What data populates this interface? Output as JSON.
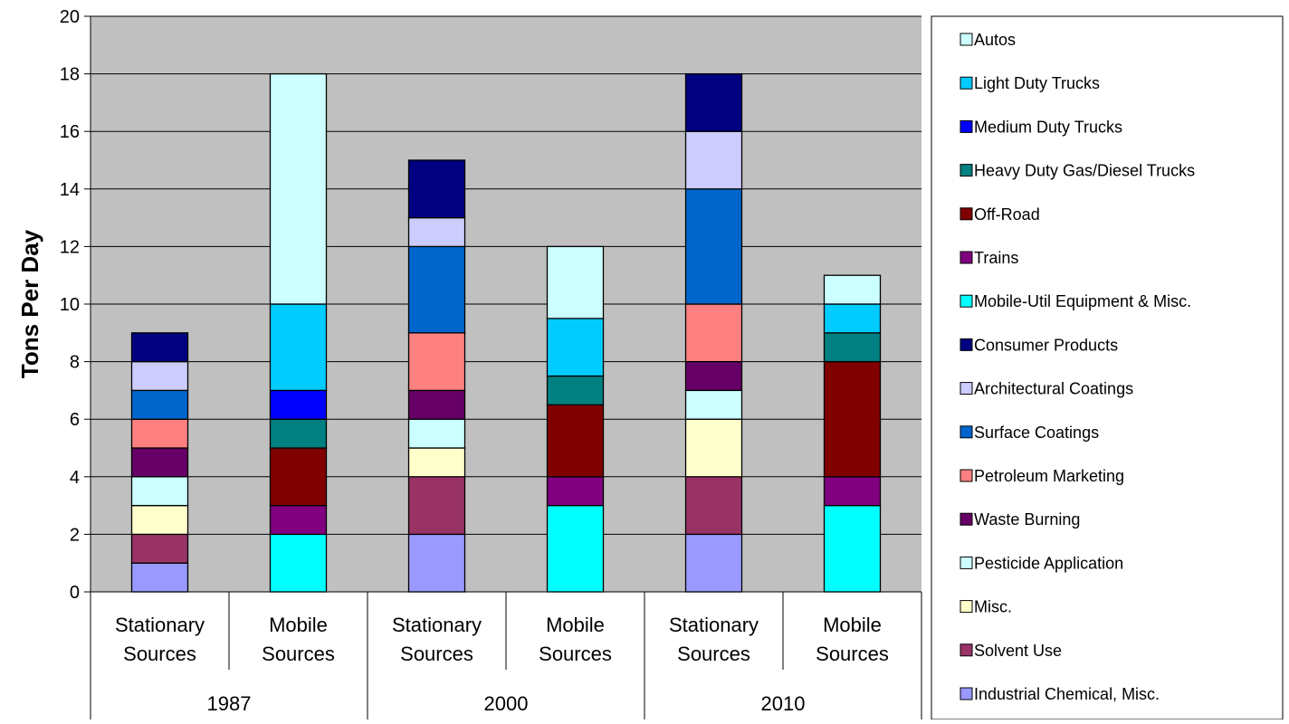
{
  "chart_data": {
    "type": "bar",
    "stacked": true,
    "title": "",
    "xlabel": "",
    "ylabel": "Tons Per Day",
    "ylim": [
      0,
      20
    ],
    "yticks": [
      0,
      2,
      4,
      6,
      8,
      10,
      12,
      14,
      16,
      18,
      20
    ],
    "grid": true,
    "legend_position": "right",
    "plot_background": "#C0C0C0",
    "groups": [
      "1987",
      "2000",
      "2010"
    ],
    "categories": [
      [
        "Stationary",
        "Sources"
      ],
      [
        "Mobile",
        "Sources"
      ],
      [
        "Stationary",
        "Sources"
      ],
      [
        "Mobile",
        "Sources"
      ],
      [
        "Stationary",
        "Sources"
      ],
      [
        "Mobile",
        "Sources"
      ]
    ],
    "category_group": [
      0,
      0,
      1,
      1,
      2,
      2
    ],
    "series": [
      {
        "name": "Industrial Chemical, Misc.",
        "color": "#9999FF",
        "values": [
          1,
          0,
          2,
          0,
          2,
          0
        ]
      },
      {
        "name": "Solvent Use",
        "color": "#993366",
        "values": [
          1,
          0,
          2,
          0,
          2,
          0
        ]
      },
      {
        "name": "Misc.",
        "color": "#FFFFCC",
        "values": [
          1,
          0,
          1,
          0,
          2,
          0
        ]
      },
      {
        "name": "Pesticide Application",
        "color": "#CCFFFF",
        "values": [
          1,
          0,
          1,
          0,
          1,
          0
        ]
      },
      {
        "name": "Waste Burning",
        "color": "#660066",
        "values": [
          1,
          0,
          1,
          0,
          1,
          0
        ]
      },
      {
        "name": "Petroleum Marketing",
        "color": "#FF8080",
        "values": [
          1,
          0,
          2,
          0,
          2,
          0
        ]
      },
      {
        "name": "Surface Coatings",
        "color": "#0066CC",
        "values": [
          1,
          0,
          3,
          0,
          4,
          0
        ]
      },
      {
        "name": "Architectural Coatings",
        "color": "#CCCCFF",
        "values": [
          1,
          0,
          1,
          0,
          2,
          0
        ]
      },
      {
        "name": "Consumer Products",
        "color": "#000080",
        "values": [
          1,
          0,
          2,
          0,
          2,
          0
        ]
      },
      {
        "name": "Mobile-Util Equipment & Misc.",
        "color": "#00FFFF",
        "values": [
          0,
          2,
          0,
          3,
          0,
          3
        ]
      },
      {
        "name": "Trains",
        "color": "#800080",
        "values": [
          0,
          1,
          0,
          1,
          0,
          1
        ]
      },
      {
        "name": "Off-Road",
        "color": "#800000",
        "values": [
          0,
          2,
          0,
          2.5,
          0,
          4
        ]
      },
      {
        "name": "Heavy Duty Gas/Diesel Trucks",
        "color": "#008080",
        "values": [
          0,
          1,
          0,
          1,
          0,
          1
        ]
      },
      {
        "name": "Medium Duty Trucks",
        "color": "#0000FF",
        "values": [
          0,
          1,
          0,
          0,
          0,
          0
        ]
      },
      {
        "name": "Light Duty Trucks",
        "color": "#00CCFF",
        "values": [
          0,
          3,
          0,
          2,
          0,
          1
        ]
      },
      {
        "name": "Autos",
        "color": "#CCFFFF",
        "values": [
          0,
          8,
          0,
          2.5,
          0,
          1
        ]
      }
    ],
    "legend_order": [
      "Autos",
      "Light Duty Trucks",
      "Medium Duty Trucks",
      "Heavy Duty Gas/Diesel Trucks",
      "Off-Road",
      "Trains",
      "Mobile-Util Equipment & Misc.",
      "Consumer Products",
      "Architectural Coatings",
      "Surface Coatings",
      "Petroleum Marketing",
      "Waste Burning",
      "Pesticide Application",
      "Misc.",
      "Solvent Use",
      "Industrial Chemical, Misc."
    ]
  }
}
